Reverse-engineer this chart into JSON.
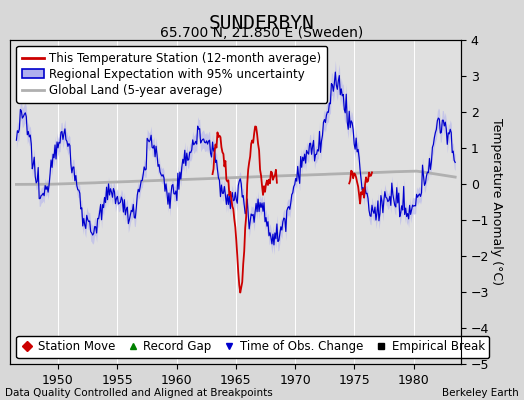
{
  "title": "SUNDERBYN",
  "subtitle": "65.700 N, 21.850 E (Sweden)",
  "ylabel": "Temperature Anomaly (°C)",
  "xlabel_note": "Data Quality Controlled and Aligned at Breakpoints",
  "credit": "Berkeley Earth",
  "xlim": [
    1946,
    1984
  ],
  "ylim": [
    -5,
    4
  ],
  "yticks": [
    -5,
    -4,
    -3,
    -2,
    -1,
    0,
    1,
    2,
    3,
    4
  ],
  "xticks": [
    1950,
    1955,
    1960,
    1965,
    1970,
    1975,
    1980
  ],
  "bg_color": "#d8d8d8",
  "plot_bg_color": "#e0e0e0",
  "red_color": "#cc0000",
  "blue_color": "#0000cc",
  "blue_fill_color": "#b0b0ee",
  "gray_color": "#b0b0b0",
  "title_fontsize": 14,
  "subtitle_fontsize": 10,
  "legend_fontsize": 8.5,
  "tick_fontsize": 9,
  "ylabel_fontsize": 9,
  "note_fontsize": 7.5
}
